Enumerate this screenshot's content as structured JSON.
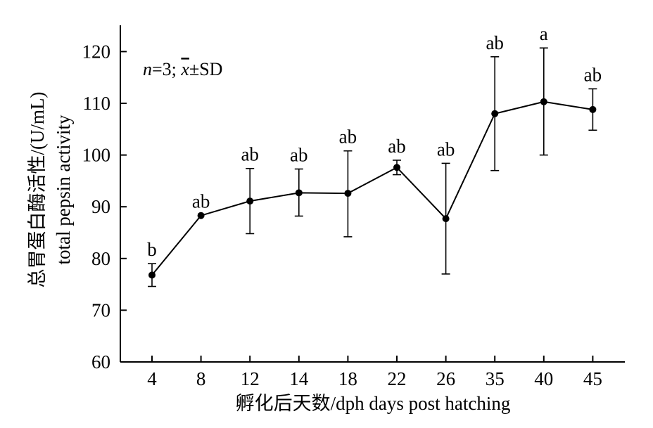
{
  "chart_data": {
    "type": "line",
    "categories": [
      "4",
      "8",
      "12",
      "14",
      "18",
      "22",
      "26",
      "35",
      "40",
      "45"
    ],
    "values": [
      76.8,
      88.3,
      91.1,
      92.7,
      92.6,
      97.6,
      87.7,
      108.0,
      110.3,
      108.8
    ],
    "error_upper": [
      79.0,
      88.3,
      97.4,
      97.3,
      100.8,
      99.0,
      98.4,
      119.0,
      120.7,
      112.8
    ],
    "error_lower": [
      74.6,
      88.3,
      84.8,
      88.2,
      84.2,
      96.2,
      77.0,
      97.0,
      100.0,
      104.8
    ],
    "significance": [
      "b",
      "ab",
      "ab",
      "ab",
      "ab",
      "ab",
      "ab",
      "ab",
      "a",
      "ab"
    ],
    "ylim": [
      60,
      125
    ],
    "yticks": [
      "60",
      "70",
      "80",
      "90",
      "100",
      "110",
      "120"
    ],
    "ylabel_cn": "总胃蛋白酶活性/(U/mL)",
    "ylabel_en": "total pepsin activity",
    "xlabel": "孵化后天数/dph days post hatching",
    "annotation": {
      "n_part": "n",
      "n_eq": "=3; ",
      "x_part": "x",
      "sd_part": "±SD"
    },
    "grid": false
  }
}
